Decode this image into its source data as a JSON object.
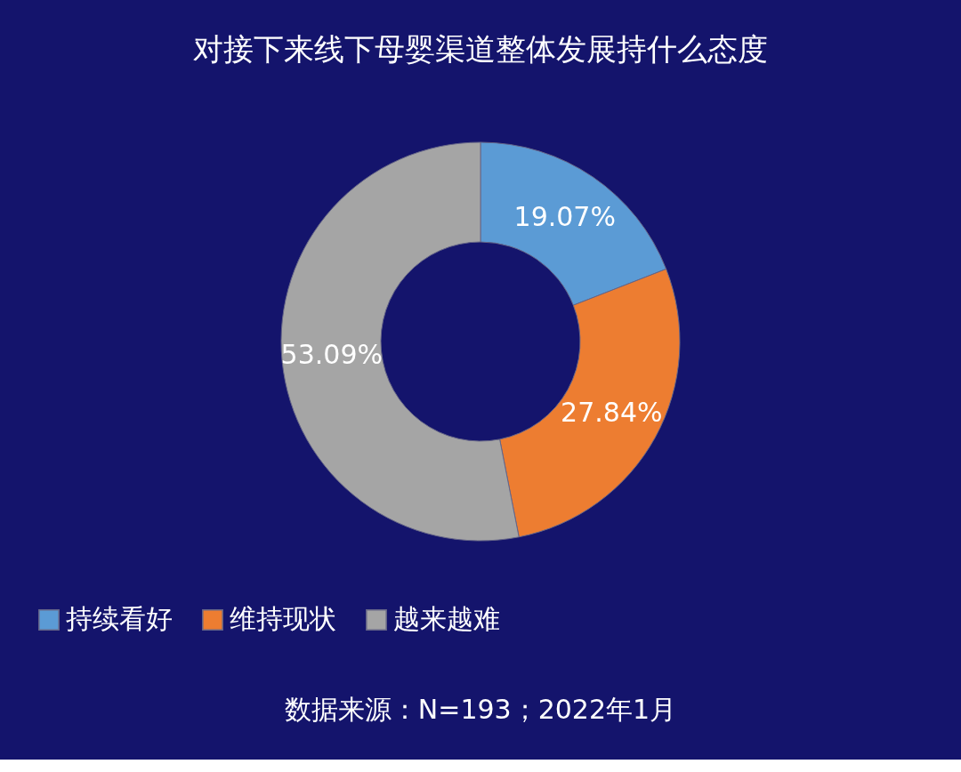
{
  "chart_data": {
    "type": "donut",
    "title": "对接下来线下母婴渠道整体发展持什么态度",
    "categories": [
      "持续看好",
      "维持现状",
      "越来越难"
    ],
    "values": [
      19.07,
      27.84,
      53.09
    ],
    "colors": [
      "#5b9bd5",
      "#ed7d31",
      "#a5a5a5"
    ],
    "value_labels": [
      "19.07%",
      "27.84%",
      "53.09%"
    ],
    "legend": "bottom",
    "annotations": [
      "数据来源：N=193；2022年1月"
    ]
  }
}
